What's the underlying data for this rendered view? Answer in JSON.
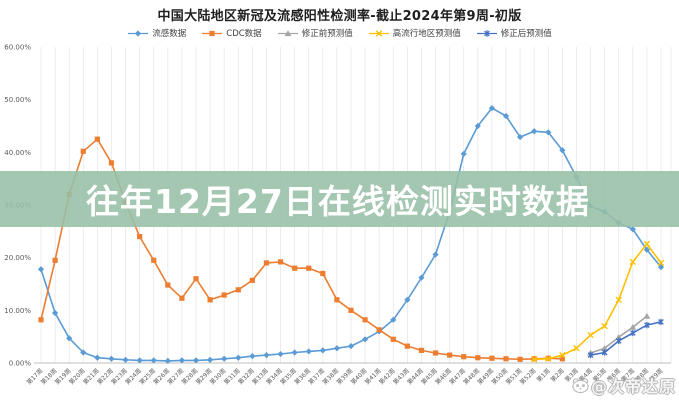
{
  "title": "中国大陆地区新冠及流感阳性检测率-截止2024年第9周-初版",
  "banner": {
    "text": "往年12月27日在线检测实时数据",
    "bg_color": "#97bfa6",
    "text_color": "#ffffff"
  },
  "watermark": {
    "icon": "panda-icon",
    "text": "@次帝达原"
  },
  "colors": {
    "flu": "#5B9BD5",
    "cdc": "#ED7D31",
    "pre_correction": "#A5A5A5",
    "high_prevalence": "#FFC000",
    "post_correction": "#4472C4",
    "gridline": "#e4e4e4",
    "axis": "#bfbfbf",
    "tick_label": "#595959"
  },
  "chart_data": {
    "type": "line",
    "title": "中国大陆地区新冠及流感阳性检测率-截止2024年第9周-初版",
    "legend_position": "top",
    "grid": "vertical-only",
    "y_axis": {
      "min": 0,
      "max": 60,
      "step": 10,
      "format": "percent",
      "labels": [
        "60.00%",
        "50.00%",
        "40.00%",
        "30.00%",
        "20.00%",
        "10.00%",
        "0.00%"
      ]
    },
    "categories": [
      "第17周",
      "第18周",
      "第19周",
      "第20周",
      "第21周",
      "第22周",
      "第23周",
      "第24周",
      "第25周",
      "第26周",
      "第27周",
      "第28周",
      "第29周",
      "第30周",
      "第31周",
      "第32周",
      "第33周",
      "第34周",
      "第35周",
      "第36周",
      "第37周",
      "第38周",
      "第39周",
      "第40周",
      "第41周",
      "第42周",
      "第43周",
      "第44周",
      "第45周",
      "第46周",
      "第47周",
      "第48周",
      "第49周",
      "第50周",
      "第51周",
      "第52周",
      "第1周",
      "第2周",
      "第3周",
      "第4周",
      "第5周",
      "第6周",
      "第7周",
      "第8周",
      "第9周"
    ],
    "series": [
      {
        "name": "流感数据",
        "color": "#5B9BD5",
        "marker": "diamond",
        "values": [
          17.8,
          9.5,
          4.7,
          2.0,
          1.0,
          0.8,
          0.6,
          0.5,
          0.5,
          0.4,
          0.5,
          0.5,
          0.6,
          0.8,
          1.0,
          1.3,
          1.5,
          1.7,
          2.0,
          2.2,
          2.4,
          2.8,
          3.2,
          4.5,
          6.0,
          8.2,
          12.0,
          16.2,
          20.6,
          28.7,
          39.7,
          45.0,
          48.4,
          46.9,
          42.9,
          44.0,
          43.8,
          40.4,
          35.3,
          29.8,
          28.7,
          26.6,
          25.4,
          21.5,
          18.2
        ]
      },
      {
        "name": "CDC数据",
        "color": "#ED7D31",
        "marker": "square",
        "values": [
          8.2,
          19.5,
          32.0,
          40.2,
          42.5,
          38.0,
          30.5,
          24.0,
          19.5,
          14.8,
          12.3,
          16.0,
          12.0,
          12.9,
          13.9,
          15.7,
          19.0,
          19.2,
          18.0,
          18.0,
          17.0,
          12.0,
          10.0,
          8.2,
          6.3,
          4.5,
          3.2,
          2.4,
          1.9,
          1.5,
          1.2,
          1.0,
          0.9,
          0.8,
          0.7,
          0.8,
          0.9,
          0.8,
          null,
          null,
          null,
          null,
          null,
          null,
          null
        ]
      },
      {
        "name": "修正前预测值",
        "color": "#A5A5A5",
        "marker": "triangle",
        "values": [
          null,
          null,
          null,
          null,
          null,
          null,
          null,
          null,
          null,
          null,
          null,
          null,
          null,
          null,
          null,
          null,
          null,
          null,
          null,
          null,
          null,
          null,
          null,
          null,
          null,
          null,
          null,
          null,
          null,
          null,
          null,
          null,
          null,
          null,
          null,
          null,
          null,
          null,
          null,
          1.9,
          2.8,
          4.9,
          6.8,
          8.9,
          null
        ]
      },
      {
        "name": "高流行地区预测值",
        "color": "#FFC000",
        "marker": "x",
        "values": [
          null,
          null,
          null,
          null,
          null,
          null,
          null,
          null,
          null,
          null,
          null,
          null,
          null,
          null,
          null,
          null,
          null,
          null,
          null,
          null,
          null,
          null,
          null,
          null,
          null,
          null,
          null,
          null,
          null,
          null,
          null,
          null,
          null,
          null,
          null,
          0.7,
          0.8,
          1.5,
          2.8,
          5.3,
          7.0,
          12.0,
          19.2,
          22.6,
          19.0
        ]
      },
      {
        "name": "修正后预测值",
        "color": "#4472C4",
        "marker": "asterisk",
        "values": [
          null,
          null,
          null,
          null,
          null,
          null,
          null,
          null,
          null,
          null,
          null,
          null,
          null,
          null,
          null,
          null,
          null,
          null,
          null,
          null,
          null,
          null,
          null,
          null,
          null,
          null,
          null,
          null,
          null,
          null,
          null,
          null,
          null,
          null,
          null,
          null,
          null,
          null,
          null,
          1.5,
          2.0,
          4.2,
          5.7,
          7.2,
          7.8
        ]
      }
    ]
  }
}
